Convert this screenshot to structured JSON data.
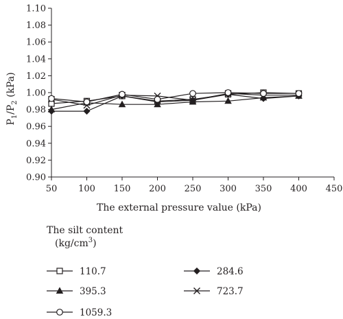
{
  "chart_data": {
    "type": "line",
    "xlabel": "The external pressure value (kPa)",
    "ylabel_main": "P",
    "ylabel_sub1": "1",
    "ylabel_mid": "/P",
    "ylabel_sub2": "2",
    "ylabel_unit": " (kPa)",
    "xlim": [
      50,
      450
    ],
    "ylim": [
      0.9,
      1.1
    ],
    "x_ticks": [
      50,
      100,
      150,
      200,
      250,
      300,
      350,
      400,
      450
    ],
    "y_ticks": [
      "0.90",
      "0.92",
      "0.94",
      "0.96",
      "0.98",
      "1.00",
      "1.02",
      "1.04",
      "1.06",
      "1.08",
      "1.10"
    ],
    "grid": false,
    "legend_title_line1": "The silt content",
    "legend_title_line2": "(kg/cm",
    "legend_title_sup": "3",
    "legend_title_close": ")",
    "legend_placement": "bottom",
    "x": [
      50,
      100,
      150,
      200,
      250,
      300,
      350,
      400
    ],
    "series": [
      {
        "name": "110.7",
        "marker": "square",
        "values": [
          0.987,
          0.99,
          0.996,
          0.99,
          0.992,
          0.998,
          1.0,
          0.999
        ]
      },
      {
        "name": "284.6",
        "marker": "diamond",
        "values": [
          0.978,
          0.978,
          0.996,
          0.989,
          0.991,
          0.998,
          0.993,
          0.996
        ]
      },
      {
        "name": "395.3",
        "marker": "triangle",
        "values": [
          0.98,
          0.988,
          0.986,
          0.986,
          0.989,
          0.99,
          0.994,
          0.996
        ]
      },
      {
        "name": "723.7",
        "marker": "x",
        "values": [
          0.992,
          0.985,
          0.997,
          0.996,
          0.991,
          0.999,
          0.997,
          0.997
        ]
      },
      {
        "name": "1059.3",
        "marker": "circle",
        "values": [
          0.993,
          0.989,
          0.998,
          0.992,
          0.999,
          1.0,
          0.999,
          0.999
        ]
      }
    ]
  }
}
